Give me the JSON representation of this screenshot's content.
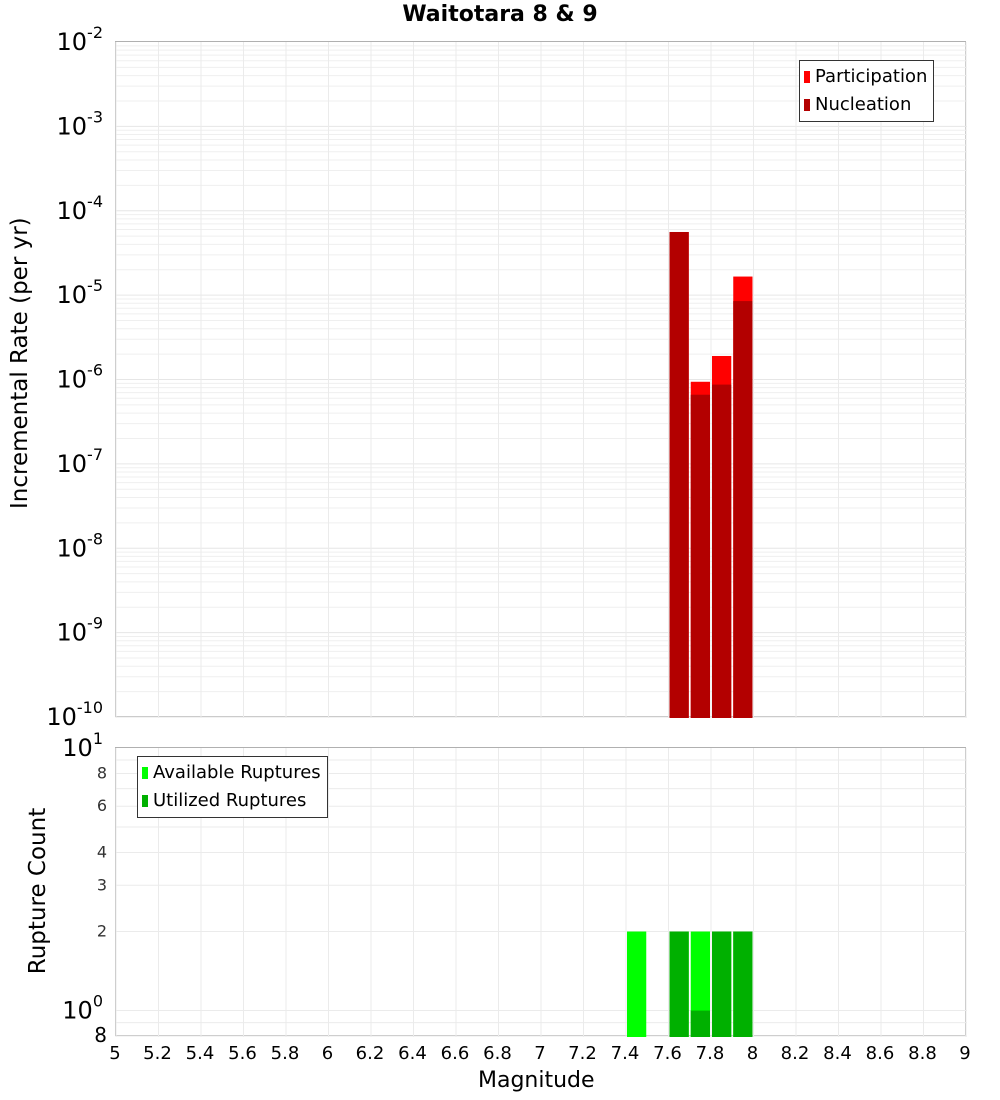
{
  "title": "Waitotara 8 & 9",
  "chart_data": [
    {
      "type": "bar",
      "title": "Waitotara 8 & 9",
      "xlabel": "Magnitude",
      "ylabel": "Incremental Rate (per yr)",
      "yscale": "log",
      "ylim": [
        1e-10,
        0.01
      ],
      "xlim": [
        5,
        9
      ],
      "grid": true,
      "legend_position": "upper right",
      "bin_width": 0.1,
      "x": [
        7.65,
        7.75,
        7.85,
        7.95
      ],
      "series": [
        {
          "name": "Participation",
          "color": "#ff0000",
          "values": [
            5.6e-05,
            9.4e-07,
            1.9e-06,
            1.66e-05
          ]
        },
        {
          "name": "Nucleation",
          "color": "#b30000",
          "values": [
            5.6e-05,
            6.6e-07,
            8.7e-07,
            8.5e-06
          ]
        }
      ],
      "ytick_exponents": [
        -2,
        -3,
        -4,
        -5,
        -6,
        -7,
        -8,
        -9,
        -10
      ]
    },
    {
      "type": "bar",
      "xlabel": "Magnitude",
      "ylabel": "Rupture Count",
      "yscale": "log",
      "ylim": [
        0.8,
        10
      ],
      "xlim": [
        5,
        9
      ],
      "grid": true,
      "legend_position": "upper left",
      "bin_width": 0.1,
      "x": [
        7.45,
        7.65,
        7.75,
        7.85,
        7.95
      ],
      "series": [
        {
          "name": "Available Ruptures",
          "color": "#00ff00",
          "values": [
            2,
            2,
            2,
            2,
            2
          ]
        },
        {
          "name": "Utilized Ruptures",
          "color": "#00b000",
          "values": [
            0,
            2,
            1,
            2,
            2
          ]
        }
      ],
      "ytick_labels": [
        "10^1",
        "8",
        "6",
        "4",
        "3",
        "2",
        "10^0",
        "8"
      ]
    }
  ],
  "axes": {
    "top_ylabel": "Incremental Rate (per yr)",
    "bottom_ylabel": "Rupture Count",
    "xlabel": "Magnitude",
    "xticks": [
      "5",
      "5.2",
      "5.4",
      "5.6",
      "5.8",
      "6",
      "6.2",
      "6.4",
      "6.6",
      "6.8",
      "7",
      "7.2",
      "7.4",
      "7.6",
      "7.8",
      "8",
      "8.2",
      "8.4",
      "8.6",
      "8.8",
      "9"
    ]
  },
  "legends": {
    "top": [
      {
        "label": "Participation",
        "color": "#ff0000"
      },
      {
        "label": "Nucleation",
        "color": "#b30000"
      }
    ],
    "bottom": [
      {
        "label": "Available Ruptures",
        "color": "#00ff00"
      },
      {
        "label": "Utilized Ruptures",
        "color": "#00b000"
      }
    ]
  }
}
